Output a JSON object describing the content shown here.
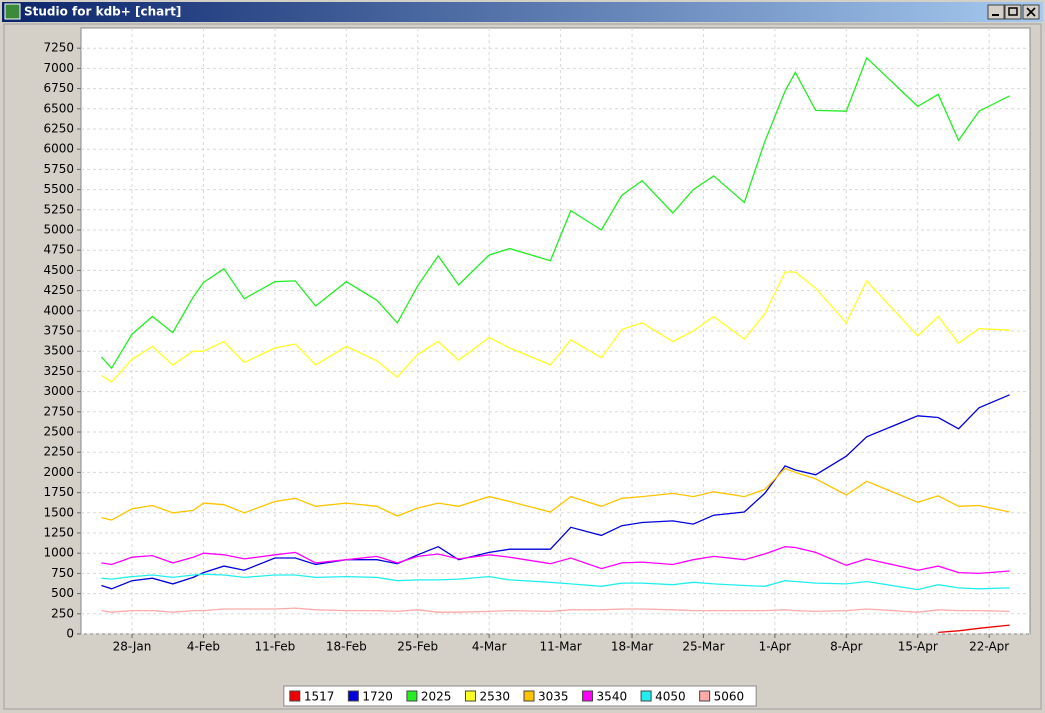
{
  "window": {
    "title": "Studio for kdb+ [chart]"
  },
  "chart_data": {
    "type": "line",
    "x": [
      "25-Jan",
      "26-Jan",
      "28-Jan",
      "30-Jan",
      "1-Feb",
      "3-Feb",
      "4-Feb",
      "6-Feb",
      "8-Feb",
      "11-Feb",
      "13-Feb",
      "15-Feb",
      "18-Feb",
      "21-Feb",
      "23-Feb",
      "25-Feb",
      "27-Feb",
      "1-Mar",
      "4-Mar",
      "6-Mar",
      "10-Mar",
      "12-Mar",
      "15-Mar",
      "17-Mar",
      "19-Mar",
      "22-Mar",
      "24-Mar",
      "26-Mar",
      "29-Mar",
      "31-Mar",
      "2-Apr",
      "3-Apr",
      "5-Apr",
      "8-Apr",
      "10-Apr",
      "15-Apr",
      "17-Apr",
      "19-Apr",
      "21-Apr",
      "24-Apr"
    ],
    "xlim": [
      "23-Jan",
      "26-Apr"
    ],
    "xticks": [
      "28-Jan",
      "4-Feb",
      "11-Feb",
      "18-Feb",
      "25-Feb",
      "4-Mar",
      "11-Mar",
      "18-Mar",
      "25-Mar",
      "1-Apr",
      "8-Apr",
      "15-Apr",
      "22-Apr"
    ],
    "ylim": [
      0,
      7500
    ],
    "yticks": [
      0,
      250,
      500,
      750,
      1000,
      1250,
      1500,
      1750,
      2000,
      2250,
      2500,
      2750,
      3000,
      3250,
      3500,
      3750,
      4000,
      4250,
      4500,
      4750,
      5000,
      5250,
      5500,
      5750,
      6000,
      6250,
      6500,
      6750,
      7000,
      7250
    ],
    "grid": true,
    "legend": "bottom",
    "series": [
      {
        "name": "1517",
        "color": "#ee0000",
        "values": [
          null,
          null,
          null,
          null,
          null,
          null,
          null,
          null,
          null,
          null,
          null,
          null,
          null,
          null,
          null,
          null,
          null,
          null,
          null,
          null,
          null,
          null,
          null,
          null,
          null,
          null,
          null,
          null,
          null,
          null,
          null,
          null,
          null,
          null,
          null,
          null,
          20,
          40,
          70,
          110
        ]
      },
      {
        "name": "1720",
        "color": "#0000dd",
        "values": [
          600,
          560,
          660,
          690,
          620,
          700,
          760,
          840,
          790,
          940,
          940,
          860,
          920,
          920,
          870,
          980,
          1080,
          920,
          1010,
          1050,
          1050,
          1320,
          1220,
          1340,
          1380,
          1400,
          1360,
          1470,
          1510,
          1740,
          2080,
          2030,
          1970,
          2200,
          2440,
          2700,
          2680,
          2540,
          2800,
          2960
        ]
      },
      {
        "name": "2025",
        "color": "#22ee22",
        "values": [
          3430,
          3290,
          3710,
          3930,
          3730,
          4170,
          4350,
          4520,
          4150,
          4360,
          4370,
          4060,
          4360,
          4130,
          3850,
          4310,
          4680,
          4320,
          4690,
          4770,
          4620,
          5240,
          5000,
          5430,
          5610,
          5210,
          5500,
          5670,
          5340,
          6090,
          6720,
          6950,
          6480,
          6470,
          7130,
          6530,
          6680,
          6110,
          6470,
          6660
        ]
      },
      {
        "name": "2530",
        "color": "#ffff22",
        "values": [
          3200,
          3120,
          3400,
          3560,
          3330,
          3500,
          3500,
          3620,
          3360,
          3540,
          3590,
          3330,
          3560,
          3380,
          3180,
          3460,
          3620,
          3390,
          3670,
          3540,
          3330,
          3640,
          3420,
          3770,
          3850,
          3620,
          3750,
          3930,
          3650,
          3960,
          4480,
          4480,
          4280,
          3850,
          4370,
          3690,
          3930,
          3600,
          3780,
          3760
        ]
      },
      {
        "name": "3035",
        "color": "#ffc400",
        "values": [
          1440,
          1410,
          1550,
          1590,
          1500,
          1530,
          1620,
          1600,
          1500,
          1640,
          1680,
          1580,
          1620,
          1580,
          1460,
          1560,
          1620,
          1580,
          1700,
          1640,
          1510,
          1700,
          1580,
          1680,
          1700,
          1740,
          1700,
          1760,
          1700,
          1790,
          2050,
          2000,
          1920,
          1720,
          1890,
          1630,
          1710,
          1580,
          1590,
          1510
        ]
      },
      {
        "name": "3540",
        "color": "#ff00ff",
        "values": [
          880,
          860,
          950,
          970,
          880,
          950,
          1000,
          980,
          930,
          980,
          1010,
          880,
          920,
          960,
          880,
          960,
          990,
          930,
          980,
          950,
          870,
          940,
          810,
          880,
          890,
          860,
          920,
          960,
          920,
          990,
          1080,
          1070,
          1010,
          850,
          930,
          790,
          840,
          760,
          750,
          780
        ]
      },
      {
        "name": "4050",
        "color": "#22eeee",
        "values": [
          690,
          680,
          710,
          730,
          700,
          730,
          740,
          730,
          700,
          730,
          730,
          700,
          710,
          700,
          660,
          670,
          670,
          680,
          710,
          670,
          640,
          620,
          590,
          630,
          630,
          610,
          640,
          620,
          600,
          590,
          660,
          650,
          630,
          620,
          650,
          550,
          610,
          570,
          560,
          570
        ]
      },
      {
        "name": "5060",
        "color": "#ffaaaa",
        "values": [
          290,
          270,
          290,
          290,
          270,
          290,
          290,
          310,
          310,
          310,
          320,
          300,
          290,
          290,
          280,
          300,
          270,
          270,
          280,
          290,
          280,
          300,
          300,
          310,
          310,
          300,
          290,
          290,
          290,
          290,
          300,
          290,
          280,
          290,
          310,
          270,
          300,
          290,
          290,
          280
        ]
      }
    ]
  }
}
